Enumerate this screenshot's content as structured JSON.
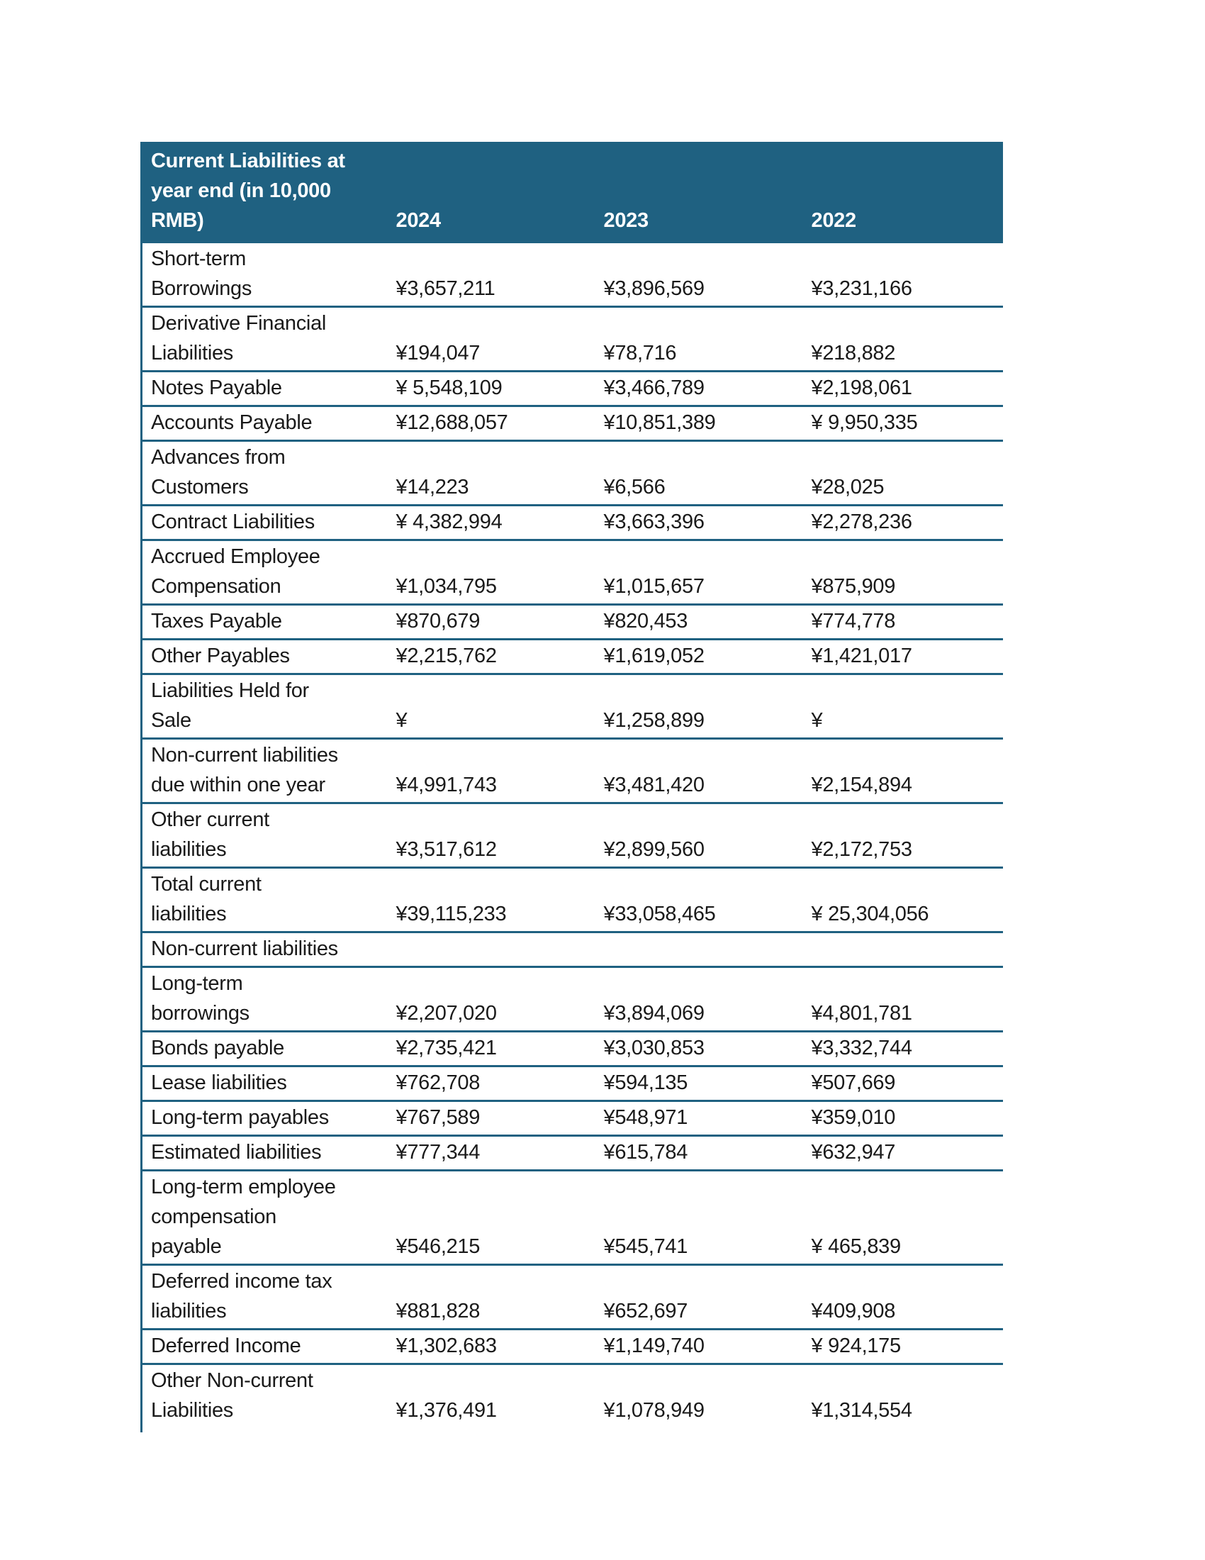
{
  "document": {
    "background_color": "#ffffff",
    "table": {
      "accent_color": "#1f6181",
      "text_color": "#1a1a1a",
      "header": {
        "title": "Current Liabilities at\nyear end (in 10,000\nRMB)",
        "columns": [
          "2024",
          "2023",
          "2022"
        ]
      },
      "rows": [
        {
          "label": "Short-term\nBorrowings",
          "values": [
            "¥3,657,211",
            "¥3,896,569",
            "¥3,231,166"
          ]
        },
        {
          "label": "Derivative Financial\nLiabilities",
          "values": [
            "¥194,047",
            "¥78,716",
            "¥218,882"
          ]
        },
        {
          "label": "Notes Payable",
          "values": [
            "¥ 5,548,109",
            "¥3,466,789",
            "¥2,198,061"
          ]
        },
        {
          "label": "Accounts Payable",
          "values": [
            "¥12,688,057",
            "¥10,851,389",
            "¥ 9,950,335"
          ]
        },
        {
          "label": "Advances from\nCustomers",
          "values": [
            "¥14,223",
            "¥6,566",
            "¥28,025"
          ]
        },
        {
          "label": "Contract Liabilities",
          "values": [
            "¥ 4,382,994",
            "¥3,663,396",
            "¥2,278,236"
          ]
        },
        {
          "label": "Accrued Employee\nCompensation",
          "values": [
            "¥1,034,795",
            "¥1,015,657",
            "¥875,909"
          ]
        },
        {
          "label": "Taxes Payable",
          "values": [
            "¥870,679",
            "¥820,453",
            "¥774,778"
          ]
        },
        {
          "label": "Other Payables",
          "values": [
            "¥2,215,762",
            "¥1,619,052",
            "¥1,421,017"
          ]
        },
        {
          "label": "Liabilities Held for\nSale",
          "values": [
            "¥",
            "¥1,258,899",
            "¥"
          ]
        },
        {
          "label": "Non-current liabilities\ndue within one year",
          "values": [
            "¥4,991,743",
            "¥3,481,420",
            "¥2,154,894"
          ]
        },
        {
          "label": "Other current\nliabilities",
          "values": [
            "¥3,517,612",
            "¥2,899,560",
            "¥2,172,753"
          ]
        },
        {
          "label": "Total current\nliabilities",
          "values": [
            "¥39,115,233",
            "¥33,058,465",
            "¥ 25,304,056"
          ]
        },
        {
          "label": "Non-current liabilities",
          "values": [
            "",
            "",
            ""
          ]
        },
        {
          "label": "Long-term\nborrowings",
          "values": [
            "¥2,207,020",
            "¥3,894,069",
            "¥4,801,781"
          ]
        },
        {
          "label": "Bonds payable",
          "values": [
            "¥2,735,421",
            "¥3,030,853",
            "¥3,332,744"
          ]
        },
        {
          "label": "Lease liabilities",
          "values": [
            "¥762,708",
            "¥594,135",
            "¥507,669"
          ]
        },
        {
          "label": "Long-term payables",
          "values": [
            "¥767,589",
            "¥548,971",
            "¥359,010"
          ]
        },
        {
          "label": "Estimated liabilities",
          "values": [
            "¥777,344",
            "¥615,784",
            "¥632,947"
          ]
        },
        {
          "label": "Long-term employee\ncompensation\npayable",
          "values": [
            "¥546,215",
            "¥545,741",
            "¥ 465,839"
          ]
        },
        {
          "label": "Deferred income tax\nliabilities",
          "values": [
            "¥881,828",
            "¥652,697",
            "¥409,908"
          ]
        },
        {
          "label": "Deferred Income",
          "values": [
            "¥1,302,683",
            "¥1,149,740",
            "¥ 924,175"
          ]
        },
        {
          "label": "Other Non-current\nLiabilities",
          "values": [
            "¥1,376,491",
            "¥1,078,949",
            "¥1,314,554"
          ]
        }
      ]
    }
  }
}
